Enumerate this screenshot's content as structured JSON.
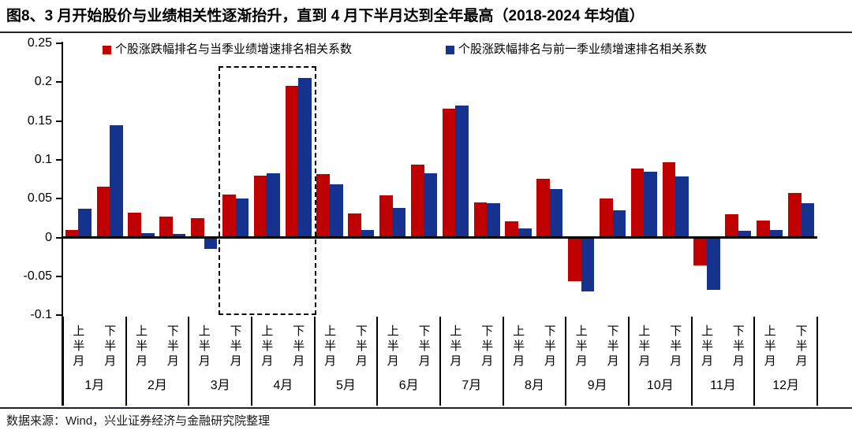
{
  "title": "图8、3 月开始股价与业绩相关性逐渐抬升，直到 4 月下半月达到全年最高（2018-2024 年均值）",
  "source": "数据来源：Wind，兴业证券经济与金融研究院整理",
  "colors": {
    "red_series": "#C00000",
    "blue_series": "#16328F",
    "axis": "#000000",
    "rule": "#20242e"
  },
  "chart_data": {
    "type": "bar",
    "title": "3 月开始股价与业绩相关性逐渐抬升，直到 4 月下半月达到全年最高（2018-2024 年均值）",
    "months": [
      "1月",
      "2月",
      "3月",
      "4月",
      "5月",
      "6月",
      "7月",
      "8月",
      "9月",
      "10月",
      "11月",
      "12月"
    ],
    "half_month_labels": [
      "上半月",
      "下半月"
    ],
    "y_tick_labels": [
      "0.25",
      "0.2",
      "0.15",
      "0.1",
      "0.05",
      "0",
      "-0.05",
      "-0.1"
    ],
    "y_ticks": [
      0.25,
      0.2,
      0.15,
      0.1,
      0.05,
      0,
      -0.05,
      -0.1
    ],
    "ylim": [
      -0.1,
      0.25
    ],
    "grid": false,
    "legend_position": "top",
    "series": [
      {
        "name": "个股涨跌幅排名与当季业绩增速排名相关系数",
        "color": "#C00000",
        "values": [
          0.01,
          0.065,
          0.032,
          0.027,
          0.025,
          0.055,
          0.08,
          0.195,
          0.082,
          0.031,
          0.054,
          0.094,
          0.166,
          0.045,
          0.021,
          0.076,
          -0.056,
          0.05,
          0.089,
          0.097,
          -0.036,
          0.03,
          0.022,
          0.057
        ]
      },
      {
        "name": "个股涨跌幅排名与前一季业绩增速排名相关系数",
        "color": "#16328F",
        "values": [
          0.037,
          0.145,
          0.006,
          0.005,
          -0.015,
          0.05,
          0.083,
          0.205,
          0.068,
          0.01,
          0.038,
          0.083,
          0.17,
          0.044,
          0.012,
          0.062,
          -0.07,
          0.035,
          0.085,
          0.079,
          -0.067,
          0.009,
          0.01,
          0.044
        ]
      }
    ],
    "highlight_box": {
      "from_category": "3月下半月",
      "to_category": "4月下半月",
      "style": "black-dashed-rectangle"
    }
  }
}
